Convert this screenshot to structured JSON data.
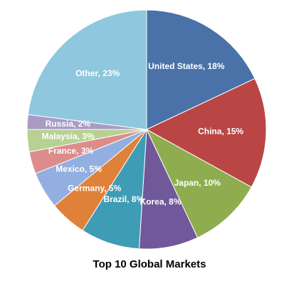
{
  "chart_data": {
    "type": "pie",
    "title": "Top 10 Global Markets",
    "values": [
      18,
      15,
      10,
      8,
      8,
      5,
      5,
      3,
      3,
      2,
      23
    ],
    "value_labels": [
      "United States, 18%",
      "China, 15%",
      "Japan, 10%",
      "Korea, 8%",
      "Brazil, 8%",
      "Germany, 5%",
      "Mexico, 5%",
      "France, 3%",
      "Malaysia, 3%",
      "Russia, 2%",
      "Other, 23%"
    ],
    "colors": [
      "#4a72a8",
      "#b94644",
      "#8fad4f",
      "#71589a",
      "#3f9cb5",
      "#e0813a",
      "#93aee0",
      "#dd8c8c",
      "#b6d192",
      "#a99cc4",
      "#8ec7de"
    ]
  }
}
